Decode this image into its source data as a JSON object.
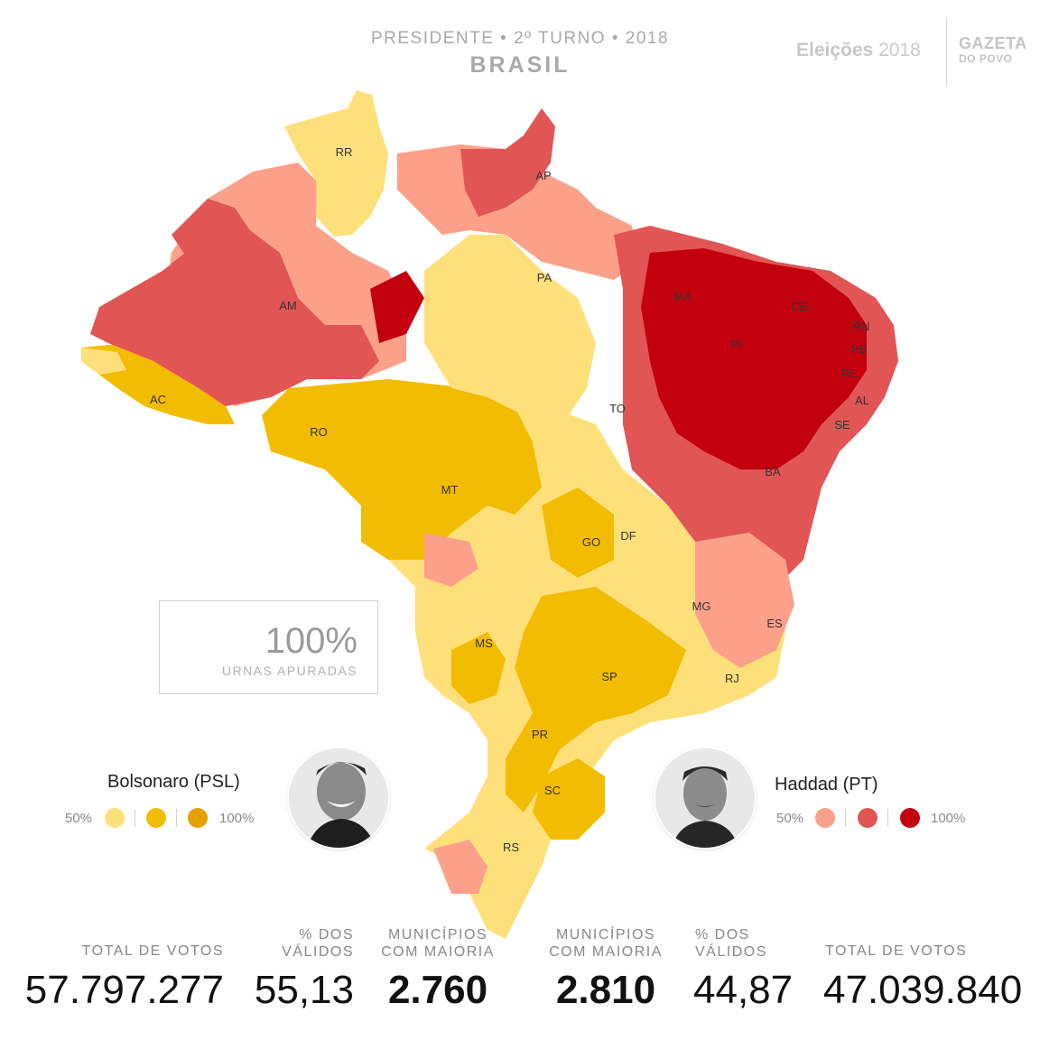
{
  "header": {
    "title": "PRESIDENTE • 2º TURNO • 2018",
    "region": "BRASIL",
    "brand_bold": "Eleições",
    "brand_year": "2018",
    "logo_line1": "GAZETA",
    "logo_line2": "DO POVO"
  },
  "progress": {
    "value": "100%",
    "label": "URNAS APURADAS"
  },
  "colors": {
    "bolsonaro_50": "#fde07a",
    "bolsonaro_mid": "#f2bd00",
    "bolsonaro_100": "#e3a000",
    "haddad_50": "#fca08a",
    "haddad_mid": "#e25555",
    "haddad_100": "#c3000e"
  },
  "map": {
    "states": [
      "RR",
      "AP",
      "AM",
      "PA",
      "MA",
      "CE",
      "RN",
      "PB",
      "PE",
      "AL",
      "SE",
      "PI",
      "AC",
      "RO",
      "TO",
      "BA",
      "MT",
      "GO",
      "DF",
      "MG",
      "ES",
      "MS",
      "SP",
      "RJ",
      "PR",
      "SC",
      "RS"
    ]
  },
  "candidates": {
    "left": {
      "name": "Bolsonaro (PSL)",
      "legend_min": "50%",
      "legend_max": "100%",
      "total_label": "TOTAL DE VOTOS",
      "total_value": "57.797.277",
      "pct_label_1": "% DOS",
      "pct_label_2": "VÁLIDOS",
      "pct_value": "55,13",
      "mun_label_1": "MUNICÍPIOS",
      "mun_label_2": "COM MAIORIA",
      "mun_value": "2.760"
    },
    "right": {
      "name": "Haddad (PT)",
      "legend_min": "50%",
      "legend_max": "100%",
      "total_label": "TOTAL DE VOTOS",
      "total_value": "47.039.840",
      "pct_label_1": "% DOS",
      "pct_label_2": "VÁLIDOS",
      "pct_value": "44,87",
      "mun_label_1": "MUNICÍPIOS",
      "mun_label_2": "COM MAIORIA",
      "mun_value": "2.810"
    }
  }
}
